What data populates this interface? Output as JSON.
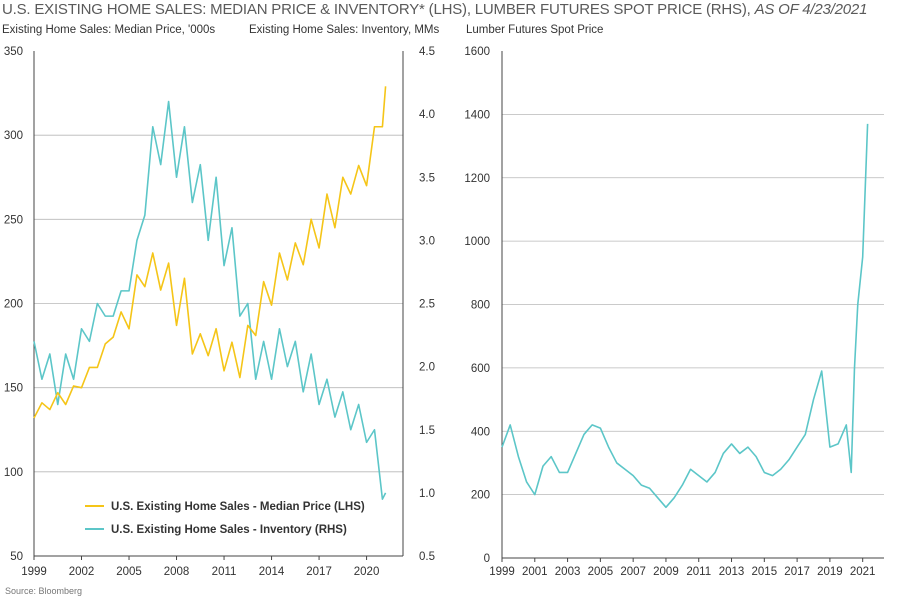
{
  "title": {
    "main": "U.S. EXISTING HOME SALES: MEDIAN PRICE & INVENTORY* (LHS), LUMBER FUTURES SPOT PRICE (RHS),",
    "asof": "AS OF 4/23/2021"
  },
  "source": "Source: Bloomberg",
  "colors": {
    "price": "#f5c518",
    "inventory": "#5cc6c8",
    "lumber": "#5cc6c8",
    "grid": "#b8b8b8",
    "axis": "#444444"
  },
  "chart_data": [
    {
      "type": "line",
      "ylabel_left": "Existing Home Sales: Median Price, '000s",
      "ylabel_right": "Existing Home Sales: Inventory, MMs",
      "xlim": [
        1999,
        2022.3
      ],
      "ylim_left": [
        50,
        350
      ],
      "ylim_right": [
        0.5,
        4.5
      ],
      "xticks": [
        "1999",
        "2002",
        "2005",
        "2008",
        "2011",
        "2014",
        "2017",
        "2020"
      ],
      "yticks_left": [
        "350",
        "300",
        "250",
        "200",
        "150",
        "100",
        "50"
      ],
      "yticks_right": [
        "4.5",
        "4.0",
        "3.5",
        "3.0",
        "2.5",
        "2.0",
        "1.5",
        "1.0",
        "0.5"
      ],
      "grid": "horizontal",
      "legend_position": "bottom-left",
      "series": [
        {
          "name": "U.S. Existing Home Sales - Median Price (LHS)",
          "axis": "left",
          "x": [
            1999.0,
            1999.5,
            2000.0,
            2000.5,
            2001.0,
            2001.5,
            2002.0,
            2002.5,
            2003.0,
            2003.5,
            2004.0,
            2004.5,
            2005.0,
            2005.5,
            2006.0,
            2006.5,
            2007.0,
            2007.5,
            2008.0,
            2008.5,
            2009.0,
            2009.5,
            2010.0,
            2010.5,
            2011.0,
            2011.5,
            2012.0,
            2012.5,
            2013.0,
            2013.5,
            2014.0,
            2014.5,
            2015.0,
            2015.5,
            2016.0,
            2016.5,
            2017.0,
            2017.5,
            2018.0,
            2018.5,
            2019.0,
            2019.5,
            2020.0,
            2020.5,
            2021.0,
            2021.2
          ],
          "values": [
            132,
            141,
            137,
            147,
            140,
            151,
            150,
            162,
            162,
            176,
            180,
            195,
            185,
            217,
            210,
            230,
            208,
            224,
            187,
            215,
            170,
            182,
            169,
            185,
            160,
            177,
            156,
            187,
            181,
            213,
            199,
            230,
            214,
            236,
            223,
            250,
            233,
            265,
            245,
            275,
            265,
            282,
            270,
            305,
            305,
            329
          ]
        },
        {
          "name": "U.S. Existing Home Sales - Inventory (RHS)",
          "axis": "right",
          "x": [
            1999.0,
            1999.5,
            2000.0,
            2000.5,
            2001.0,
            2001.5,
            2002.0,
            2002.5,
            2003.0,
            2003.5,
            2004.0,
            2004.5,
            2005.0,
            2005.5,
            2006.0,
            2006.5,
            2007.0,
            2007.5,
            2008.0,
            2008.5,
            2009.0,
            2009.5,
            2010.0,
            2010.5,
            2011.0,
            2011.5,
            2012.0,
            2012.5,
            2013.0,
            2013.5,
            2014.0,
            2014.5,
            2015.0,
            2015.5,
            2016.0,
            2016.5,
            2017.0,
            2017.5,
            2018.0,
            2018.5,
            2019.0,
            2019.5,
            2020.0,
            2020.5,
            2021.0,
            2021.2
          ],
          "values": [
            2.2,
            1.9,
            2.1,
            1.7,
            2.1,
            1.9,
            2.3,
            2.2,
            2.5,
            2.4,
            2.4,
            2.6,
            2.6,
            3.0,
            3.2,
            3.9,
            3.6,
            4.1,
            3.5,
            3.9,
            3.3,
            3.6,
            3.0,
            3.5,
            2.8,
            3.1,
            2.4,
            2.5,
            1.9,
            2.2,
            1.9,
            2.3,
            2.0,
            2.2,
            1.8,
            2.1,
            1.7,
            1.9,
            1.6,
            1.8,
            1.5,
            1.7,
            1.4,
            1.5,
            0.95,
            1.0
          ]
        }
      ]
    },
    {
      "type": "line",
      "ylabel": "Lumber Futures Spot Price",
      "xlim": [
        1999,
        2022.3
      ],
      "ylim": [
        0,
        1600
      ],
      "xticks": [
        "1999",
        "2001",
        "2003",
        "2005",
        "2007",
        "2009",
        "2011",
        "2013",
        "2015",
        "2017",
        "2019",
        "2021"
      ],
      "yticks": [
        "1600",
        "1400",
        "1200",
        "1000",
        "800",
        "600",
        "400",
        "200",
        "0"
      ],
      "grid": "horizontal",
      "series": [
        {
          "axis": "left",
          "x": [
            1999.0,
            1999.5,
            2000.0,
            2000.5,
            2001.0,
            2001.5,
            2002.0,
            2002.5,
            2003.0,
            2003.5,
            2004.0,
            2004.5,
            2005.0,
            2005.5,
            2006.0,
            2006.5,
            2007.0,
            2007.5,
            2008.0,
            2008.5,
            2009.0,
            2009.5,
            2010.0,
            2010.5,
            2011.0,
            2011.5,
            2012.0,
            2012.5,
            2013.0,
            2013.5,
            2014.0,
            2014.5,
            2015.0,
            2015.5,
            2016.0,
            2016.5,
            2017.0,
            2017.5,
            2018.0,
            2018.5,
            2019.0,
            2019.5,
            2020.0,
            2020.3,
            2020.5,
            2020.7,
            2021.0,
            2021.3
          ],
          "values": [
            350,
            420,
            320,
            240,
            200,
            290,
            320,
            270,
            270,
            330,
            390,
            420,
            410,
            350,
            300,
            280,
            260,
            230,
            220,
            190,
            160,
            190,
            230,
            280,
            260,
            240,
            270,
            330,
            360,
            330,
            350,
            320,
            270,
            260,
            280,
            310,
            350,
            390,
            500,
            590,
            350,
            360,
            420,
            270,
            600,
            800,
            950,
            1370
          ]
        }
      ]
    }
  ]
}
